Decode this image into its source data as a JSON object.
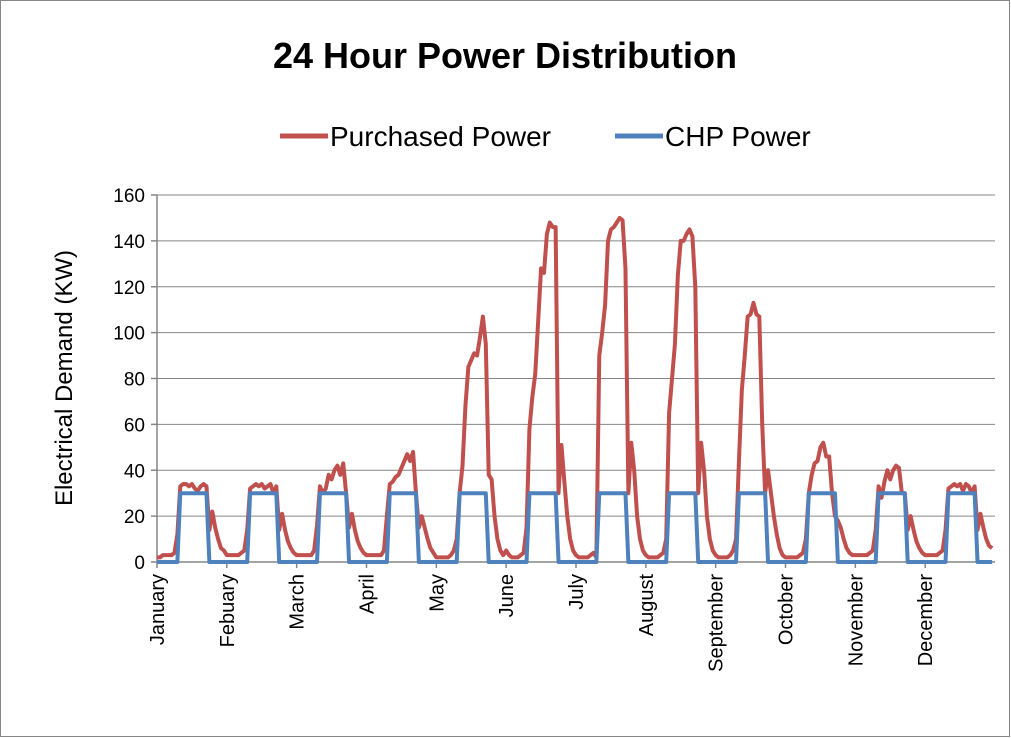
{
  "chart_data": {
    "type": "line",
    "title": "24 Hour Power Distribution",
    "y_label": "Electrical Demand (KW)",
    "ylim": [
      0,
      160
    ],
    "yticks": [
      0,
      20,
      40,
      60,
      80,
      100,
      120,
      140,
      160
    ],
    "grid": true,
    "legend": "top",
    "categories": [
      "January",
      null,
      null,
      null,
      null,
      null,
      null,
      null,
      null,
      null,
      null,
      null,
      null,
      null,
      null,
      null,
      null,
      null,
      null,
      null,
      null,
      null,
      null,
      null,
      "Febuary",
      null,
      null,
      null,
      null,
      null,
      null,
      null,
      null,
      null,
      null,
      null,
      null,
      null,
      null,
      null,
      null,
      null,
      null,
      null,
      null,
      null,
      null,
      null,
      "March",
      null,
      null,
      null,
      null,
      null,
      null,
      null,
      null,
      null,
      null,
      null,
      null,
      null,
      null,
      null,
      null,
      null,
      null,
      null,
      null,
      null,
      null,
      null,
      "April",
      null,
      null,
      null,
      null,
      null,
      null,
      null,
      null,
      null,
      null,
      null,
      null,
      null,
      null,
      null,
      null,
      null,
      null,
      null,
      null,
      null,
      null,
      null,
      "May",
      null,
      null,
      null,
      null,
      null,
      null,
      null,
      null,
      null,
      null,
      null,
      null,
      null,
      null,
      null,
      null,
      null,
      null,
      null,
      null,
      null,
      null,
      null,
      "June",
      null,
      null,
      null,
      null,
      null,
      null,
      null,
      null,
      null,
      null,
      null,
      null,
      null,
      null,
      null,
      null,
      null,
      null,
      null,
      null,
      null,
      null,
      null,
      "July",
      null,
      null,
      null,
      null,
      null,
      null,
      null,
      null,
      null,
      null,
      null,
      null,
      null,
      null,
      null,
      null,
      null,
      null,
      null,
      null,
      null,
      null,
      null,
      "August",
      null,
      null,
      null,
      null,
      null,
      null,
      null,
      null,
      null,
      null,
      null,
      null,
      null,
      null,
      null,
      null,
      null,
      null,
      null,
      null,
      null,
      null,
      null,
      "September",
      null,
      null,
      null,
      null,
      null,
      null,
      null,
      null,
      null,
      null,
      null,
      null,
      null,
      null,
      null,
      null,
      null,
      null,
      null,
      null,
      null,
      null,
      null,
      "October",
      null,
      null,
      null,
      null,
      null,
      null,
      null,
      null,
      null,
      null,
      null,
      null,
      null,
      null,
      null,
      null,
      null,
      null,
      null,
      null,
      null,
      null,
      null,
      "November",
      null,
      null,
      null,
      null,
      null,
      null,
      null,
      null,
      null,
      null,
      null,
      null,
      null,
      null,
      null,
      null,
      null,
      null,
      null,
      null,
      null,
      null,
      null,
      "December",
      null,
      null,
      null,
      null,
      null,
      null,
      null,
      null,
      null,
      null,
      null,
      null,
      null,
      null,
      null,
      null,
      null,
      null,
      null,
      null,
      null,
      null,
      null
    ],
    "series": [
      {
        "name": "Purchased Power",
        "color": "#c0504d",
        "values": [
          2,
          2,
          3,
          3,
          3,
          3,
          4,
          12,
          33,
          34,
          34,
          33,
          34,
          32,
          31,
          33,
          34,
          33,
          14,
          22,
          15,
          10,
          6,
          5,
          3,
          3,
          3,
          3,
          3,
          4,
          5,
          14,
          32,
          33,
          34,
          33,
          34,
          32,
          33,
          34,
          30,
          33,
          14,
          21,
          14,
          9,
          6,
          4,
          3,
          3,
          3,
          3,
          3,
          3,
          5,
          16,
          33,
          30,
          32,
          38,
          36,
          40,
          42,
          38,
          43,
          30,
          15,
          21,
          14,
          9,
          6,
          4,
          3,
          3,
          3,
          3,
          3,
          3,
          5,
          20,
          34,
          35,
          37,
          38,
          41,
          44,
          47,
          44,
          48,
          30,
          15,
          20,
          15,
          10,
          6,
          4,
          2,
          2,
          2,
          2,
          2,
          3,
          5,
          10,
          30,
          42,
          68,
          85,
          88,
          91,
          90,
          98,
          107,
          95,
          38,
          36,
          20,
          10,
          5,
          3,
          5,
          3,
          2,
          2,
          2,
          3,
          4,
          15,
          58,
          72,
          82,
          105,
          128,
          126,
          143,
          148,
          146,
          146,
          30,
          51,
          35,
          20,
          10,
          5,
          3,
          2,
          2,
          2,
          2,
          3,
          4,
          2,
          90,
          100,
          112,
          140,
          145,
          146,
          148,
          150,
          149,
          128,
          30,
          52,
          40,
          20,
          10,
          5,
          3,
          2,
          2,
          2,
          2,
          3,
          4,
          10,
          65,
          80,
          95,
          125,
          140,
          140,
          143,
          145,
          142,
          120,
          30,
          52,
          40,
          20,
          10,
          5,
          3,
          2,
          2,
          2,
          2,
          3,
          5,
          10,
          44,
          75,
          90,
          107,
          108,
          113,
          108,
          107,
          60,
          30,
          40,
          30,
          20,
          12,
          6,
          3,
          2,
          2,
          2,
          2,
          2,
          3,
          4,
          10,
          30,
          38,
          43,
          44,
          50,
          52,
          46,
          46,
          30,
          20,
          18,
          15,
          10,
          6,
          4,
          3,
          3,
          3,
          3,
          3,
          3,
          4,
          5,
          14,
          33,
          28,
          35,
          40,
          36,
          40,
          42,
          41,
          30,
          30,
          14,
          20,
          14,
          9,
          6,
          4,
          3,
          3,
          3,
          3,
          3,
          4,
          5,
          14,
          32,
          33,
          34,
          33,
          34,
          31,
          34,
          33,
          30,
          33,
          14,
          21,
          15,
          10,
          7,
          6
        ]
      },
      {
        "name": "CHP Power",
        "color": "#4f81bd",
        "values": [
          0,
          0,
          0,
          0,
          0,
          0,
          0,
          0,
          30,
          30,
          30,
          30,
          30,
          30,
          30,
          30,
          30,
          30,
          0,
          0,
          0,
          0,
          0,
          0,
          0,
          0,
          0,
          0,
          0,
          0,
          0,
          0,
          30,
          30,
          30,
          30,
          30,
          30,
          30,
          30,
          30,
          30,
          0,
          0,
          0,
          0,
          0,
          0,
          0,
          0,
          0,
          0,
          0,
          0,
          0,
          0,
          30,
          30,
          30,
          30,
          30,
          30,
          30,
          30,
          30,
          30,
          0,
          0,
          0,
          0,
          0,
          0,
          0,
          0,
          0,
          0,
          0,
          0,
          0,
          0,
          30,
          30,
          30,
          30,
          30,
          30,
          30,
          30,
          30,
          30,
          0,
          0,
          0,
          0,
          0,
          0,
          0,
          0,
          0,
          0,
          0,
          0,
          0,
          0,
          30,
          30,
          30,
          30,
          30,
          30,
          30,
          30,
          30,
          30,
          0,
          0,
          0,
          0,
          0,
          0,
          0,
          0,
          0,
          0,
          0,
          0,
          0,
          0,
          30,
          30,
          30,
          30,
          30,
          30,
          30,
          30,
          30,
          30,
          0,
          0,
          0,
          0,
          0,
          0,
          0,
          0,
          0,
          0,
          0,
          0,
          0,
          0,
          30,
          30,
          30,
          30,
          30,
          30,
          30,
          30,
          30,
          30,
          0,
          0,
          0,
          0,
          0,
          0,
          0,
          0,
          0,
          0,
          0,
          0,
          0,
          0,
          30,
          30,
          30,
          30,
          30,
          30,
          30,
          30,
          30,
          30,
          0,
          0,
          0,
          0,
          0,
          0,
          0,
          0,
          0,
          0,
          0,
          0,
          0,
          0,
          30,
          30,
          30,
          30,
          30,
          30,
          30,
          30,
          30,
          30,
          0,
          0,
          0,
          0,
          0,
          0,
          0,
          0,
          0,
          0,
          0,
          0,
          0,
          0,
          30,
          30,
          30,
          30,
          30,
          30,
          30,
          30,
          30,
          30,
          0,
          0,
          0,
          0,
          0,
          0,
          0,
          0,
          0,
          0,
          0,
          0,
          0,
          0,
          30,
          30,
          30,
          30,
          30,
          30,
          30,
          30,
          30,
          30,
          0,
          0,
          0,
          0,
          0,
          0,
          0,
          0,
          0,
          0,
          0,
          0,
          0,
          0,
          30,
          30,
          30,
          30,
          30,
          30,
          30,
          30,
          30,
          30,
          0,
          0,
          0,
          0,
          0,
          0
        ]
      }
    ]
  }
}
